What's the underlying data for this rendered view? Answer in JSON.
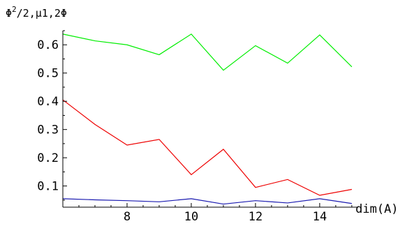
{
  "chart_data": {
    "type": "line",
    "title": "",
    "xlabel": "dim(A)",
    "ylabel": "Φ²/2,μ1,2Φ",
    "xlim": [
      6,
      15.2
    ],
    "ylim": [
      0.025,
      0.65
    ],
    "x_ticks": [
      8,
      10,
      12,
      14
    ],
    "y_ticks": [
      0.1,
      0.2,
      0.3,
      0.4,
      0.5,
      0.6
    ],
    "x_tick_labels": [
      "8",
      "10",
      "12",
      "14"
    ],
    "y_tick_labels": [
      "0.1",
      "0.2",
      "0.3",
      "0.4",
      "0.5",
      "0.6"
    ],
    "grid": false,
    "x": [
      6,
      7,
      8,
      9,
      10,
      11,
      12,
      13,
      14,
      15
    ],
    "series": [
      {
        "color": "#00ee00",
        "values": [
          0.638,
          0.614,
          0.6,
          0.565,
          0.638,
          0.51,
          0.597,
          0.535,
          0.635,
          0.522
        ]
      },
      {
        "color": "#ee0000",
        "values": [
          0.405,
          0.318,
          0.245,
          0.265,
          0.14,
          0.23,
          0.095,
          0.123,
          0.067,
          0.088
        ]
      },
      {
        "color": "#1a1ab0",
        "values": [
          0.055,
          0.051,
          0.048,
          0.044,
          0.055,
          0.036,
          0.048,
          0.04,
          0.055,
          0.038
        ]
      }
    ]
  }
}
